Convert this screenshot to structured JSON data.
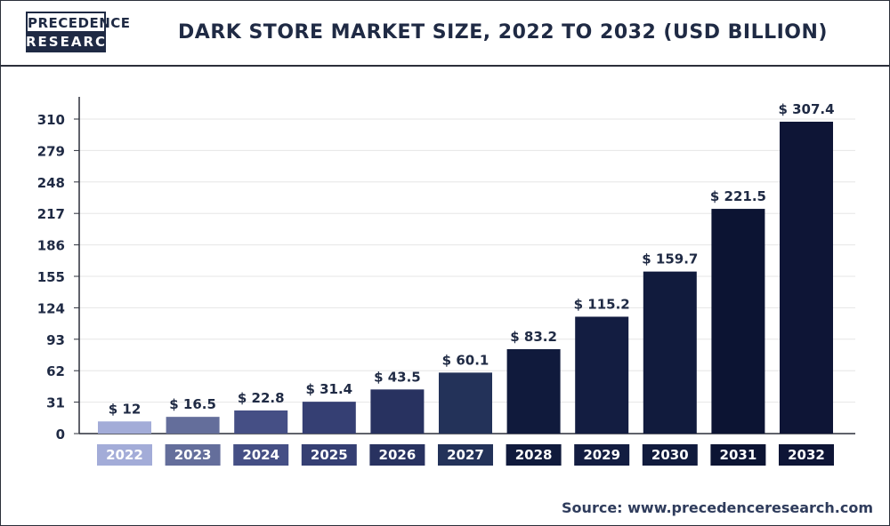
{
  "header": {
    "logo_top": "PRECEDENCE",
    "logo_bottom": "RESEARCH",
    "title": "DARK STORE MARKET SIZE, 2022 TO 2032 (USD BILLION)"
  },
  "footer": {
    "source": "Source: www.precedenceresearch.com"
  },
  "colors": {
    "bars": [
      "#a3acd8",
      "#646e9b",
      "#454f85",
      "#353f73",
      "#283260",
      "#233259",
      "#101a3c",
      "#131d41",
      "#111b3d",
      "#0c1433",
      "#0e1536"
    ],
    "labels_text": "#ffffff",
    "axis": "#2b2f3a",
    "grid": "#e6e6e6"
  },
  "chart_data": {
    "type": "bar",
    "categories": [
      "2022",
      "2023",
      "2024",
      "2025",
      "2026",
      "2027",
      "2028",
      "2029",
      "2030",
      "2031",
      "2032"
    ],
    "values": [
      12,
      16.5,
      22.8,
      31.4,
      43.5,
      60.1,
      83.2,
      115.2,
      159.7,
      221.5,
      307.4
    ],
    "value_labels": [
      "$ 12",
      "$ 16.5",
      "$ 22.8",
      "$ 31.4",
      "$ 43.5",
      "$ 60.1",
      "$ 83.2",
      "$ 115.2",
      "$ 159.7",
      "$ 221.5",
      "$ 307.4"
    ],
    "yticks": [
      0,
      31,
      62,
      93,
      124,
      155,
      186,
      217,
      248,
      279,
      310
    ],
    "ylim": [
      0,
      310
    ],
    "title": "DARK STORE MARKET SIZE, 2022 TO 2032 (USD BILLION)",
    "xlabel": "",
    "ylabel": "",
    "grid": true,
    "legend": "none"
  }
}
